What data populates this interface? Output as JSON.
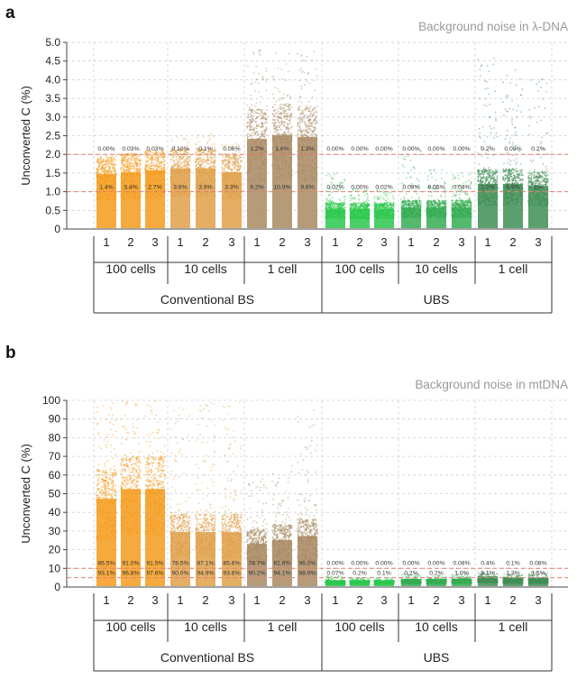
{
  "chart_data": [
    {
      "panel": "a",
      "type": "scatter",
      "title": "Background noise in λ-DNA",
      "ylabel": "Unconverted C (%)",
      "ylim": [
        0,
        5
      ],
      "yticks": [
        "0",
        "0.5",
        "1.0",
        "1.5",
        "2.0",
        "2.5",
        "3.0",
        "3.5",
        "4.0",
        "4.5",
        "5.0"
      ],
      "reference_lines": [
        1,
        2
      ],
      "grid": true,
      "categories": [
        "1",
        "2",
        "3",
        "1",
        "2",
        "3",
        "1",
        "2",
        "3",
        "1",
        "2",
        "3",
        "1",
        "2",
        "3",
        "1",
        "2",
        "3"
      ],
      "groups": [
        "100 cells",
        "10 cells",
        "1 cell",
        "100 cells",
        "10 cells",
        "1 cell"
      ],
      "methods": [
        "Conventional BS",
        "UBS"
      ],
      "series": [
        {
          "values": [
            1.4,
            1.45,
            1.5,
            1.55,
            1.55,
            1.45,
            2.3,
            2.4,
            2.35,
            0.5,
            0.5,
            0.5,
            0.55,
            0.55,
            0.55,
            1.15,
            1.15,
            1.1
          ],
          "max": [
            1.9,
            1.9,
            1.9,
            2.5,
            2.6,
            2.3,
            4.8,
            4.8,
            4.8,
            1.5,
            1.1,
            1.1,
            2.1,
            1.6,
            1.5,
            4.6,
            4.3,
            4.4
          ],
          "labels_upper": [
            "0.00%",
            "0.03%",
            "0.03%",
            "0.10%",
            "0.1%",
            "0.06%",
            "1.2%",
            "1.6%",
            "1.3%",
            "0.00%",
            "0.00%",
            "0.00%",
            "0.00%",
            "0.00%",
            "0.00%",
            "0.2%",
            "0.09%",
            "0.2%"
          ],
          "labels_lower": [
            "1.4%",
            "3.4%",
            "2.7%",
            "3.6%",
            "3.9%",
            "3.3%",
            "9.2%",
            "10.9%",
            "9.6%",
            "0.02%",
            "0.00%",
            "0.02%",
            "0.08%",
            "0.05%",
            "0.04%",
            "1.2%",
            "0.9%",
            "1%"
          ]
        }
      ]
    },
    {
      "panel": "b",
      "type": "scatter",
      "title": "Background noise in mtDNA",
      "ylabel": "Unconverted C (%)",
      "ylim": [
        0,
        100
      ],
      "yticks": [
        "0",
        "10",
        "20",
        "30",
        "40",
        "50",
        "60",
        "70",
        "80",
        "90",
        "100"
      ],
      "reference_lines": [
        5,
        10
      ],
      "grid": true,
      "categories": [
        "1",
        "2",
        "3",
        "1",
        "2",
        "3",
        "1",
        "2",
        "3",
        "1",
        "2",
        "3",
        "1",
        "2",
        "3",
        "1",
        "2",
        "3"
      ],
      "groups": [
        "100 cells",
        "10 cells",
        "1 cell",
        "100 cells",
        "10 cells",
        "1 cell"
      ],
      "methods": [
        "Conventional BS",
        "UBS"
      ],
      "series": [
        {
          "values": [
            45,
            50,
            50,
            28,
            28,
            28,
            22,
            24,
            26,
            2.5,
            2.5,
            2.5,
            3,
            3,
            3.2,
            4,
            3.5,
            3.5
          ],
          "max": [
            100,
            100,
            100,
            97,
            100,
            100,
            60,
            65,
            96,
            6,
            5,
            5,
            7,
            6,
            8,
            8,
            7,
            8
          ],
          "labels_upper": [
            "86.5%",
            "91.0%",
            "91.5%",
            "78.5%",
            "87.1%",
            "85.6%",
            "78.7%",
            "81.6%",
            "96.0%",
            "0.00%",
            "0.00%",
            "0.00%",
            "0.00%",
            "0.00%",
            "0.08%",
            "0.4%",
            "0.1%",
            "0.08%"
          ],
          "labels_lower": [
            "93.1%",
            "96.8%",
            "97.6%",
            "90.0%",
            "94.9%",
            "93.6%",
            "90.2%",
            "94.1%",
            "98.9%",
            "0.07%",
            "0.2%",
            "0.1%",
            "0.2%",
            "0.2%",
            "1.0%",
            "3.1%",
            "1.3%",
            "1.5%"
          ]
        }
      ]
    }
  ],
  "colors": {
    "bs_100": "#f59b1b",
    "bs_10": "#dfa04a",
    "bs_1": "#a98a62",
    "ubs_100": "#2cc84c",
    "ubs_10": "#35ad52",
    "ubs_1": "#3f8e55",
    "refline": "#e08070",
    "grid": "#c9d0dc"
  }
}
